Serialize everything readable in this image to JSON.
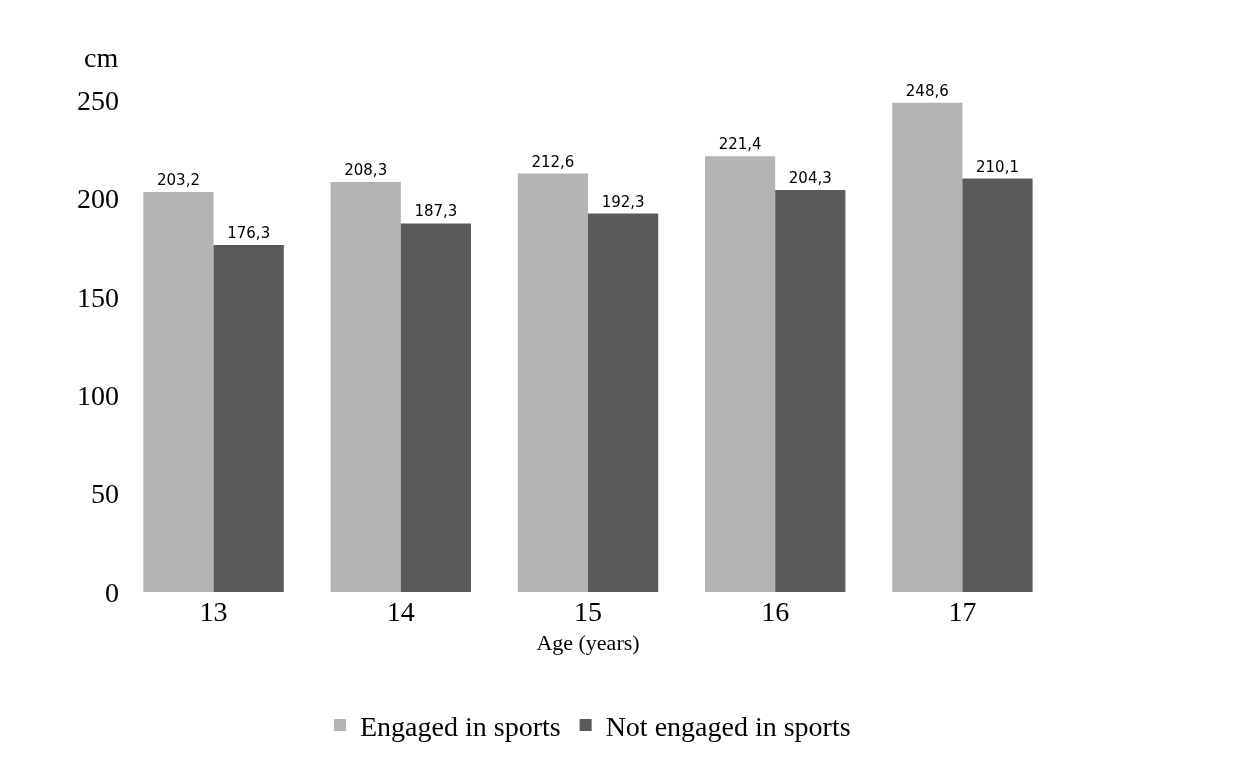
{
  "chart_data": {
    "type": "bar",
    "xlabel": "Age (years)",
    "ylabel": "cm",
    "categories": [
      "13",
      "14",
      "15",
      "16",
      "17"
    ],
    "series": [
      {
        "name": "Engaged in sports",
        "color": "#b3b3b3",
        "values": [
          203.2,
          208.3,
          212.6,
          221.4,
          248.6
        ],
        "value_labels": [
          "203,2",
          "208,3",
          "212,6",
          "221,4",
          "248,6"
        ]
      },
      {
        "name": "Not engaged in sports",
        "color": "#5a5a5a",
        "values": [
          176.3,
          187.3,
          192.3,
          204.3,
          210.1
        ],
        "value_labels": [
          "176,3",
          "187,3",
          "192,3",
          "204,3",
          "210,1"
        ]
      }
    ],
    "ylim": [
      0,
      250
    ],
    "yticks": [
      0,
      50,
      100,
      150,
      200,
      250
    ],
    "legend": "bottom"
  }
}
